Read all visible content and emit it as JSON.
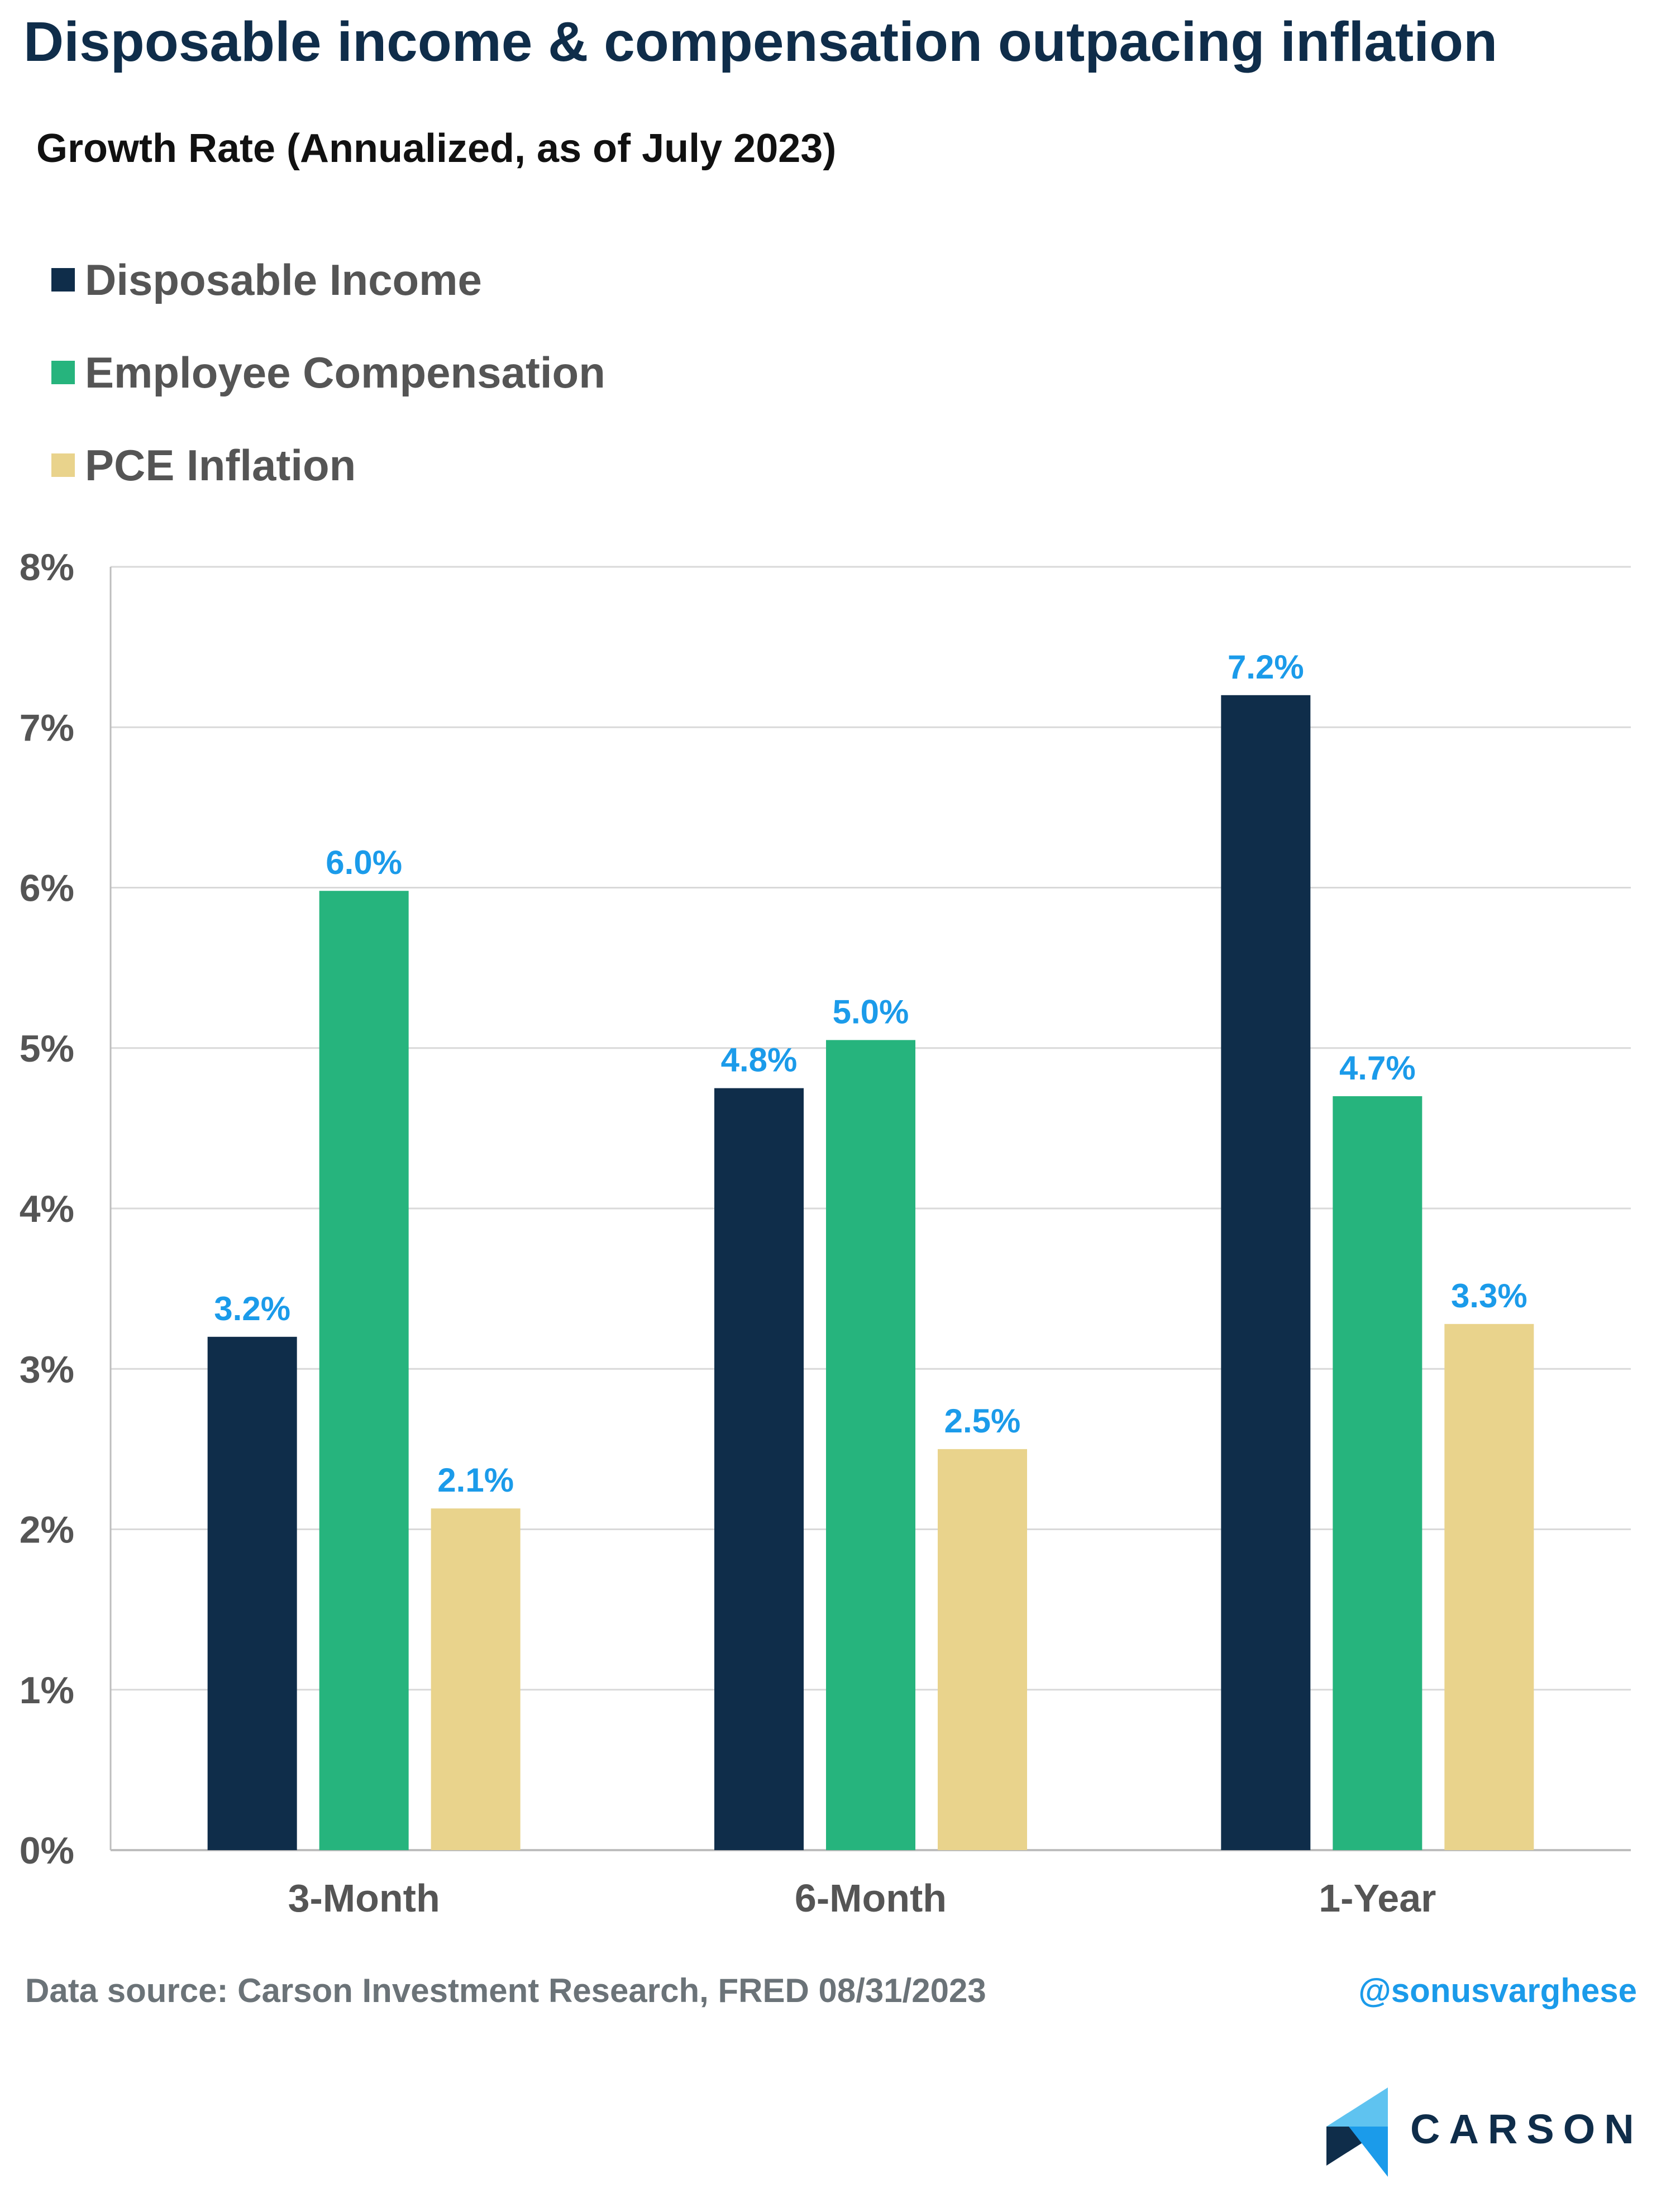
{
  "header": {
    "title": "Disposable income & compensation outpacing inflation",
    "subtitle": "Growth Rate (Annualized, as of July 2023)"
  },
  "legend": {
    "items": [
      {
        "label": "Disposable Income",
        "color": "#0f2d4a"
      },
      {
        "label": "Employee Compensation",
        "color": "#26b47d"
      },
      {
        "label": "PCE Inflation",
        "color": "#e9d38c"
      }
    ]
  },
  "chart_data": {
    "type": "bar",
    "categories": [
      "3-Month",
      "6-Month",
      "1-Year"
    ],
    "series": [
      {
        "name": "Disposable Income",
        "color": "#0f2d4a",
        "values": [
          3.2,
          4.75,
          7.2
        ],
        "labels": [
          "3.2%",
          "4.8%",
          "7.2%"
        ]
      },
      {
        "name": "Employee Compensation",
        "color": "#26b47d",
        "values": [
          5.98,
          5.05,
          4.7
        ],
        "labels": [
          "6.0%",
          "5.0%",
          "4.7%"
        ]
      },
      {
        "name": "PCE Inflation",
        "color": "#e9d38c",
        "values": [
          2.13,
          2.5,
          3.28
        ],
        "labels": [
          "2.1%",
          "2.5%",
          "3.3%"
        ]
      }
    ],
    "y_ticks": [
      "0%",
      "1%",
      "2%",
      "3%",
      "4%",
      "5%",
      "6%",
      "7%",
      "8%"
    ],
    "ylim": [
      0,
      8
    ],
    "grid": true,
    "legend_position": "top-left",
    "data_label_color": "#1b9bea"
  },
  "footer": {
    "source": "Data source: Carson Investment Research, FRED   08/31/2023",
    "handle": "@sonusvarghese"
  },
  "logo": {
    "text": "CARSON"
  }
}
